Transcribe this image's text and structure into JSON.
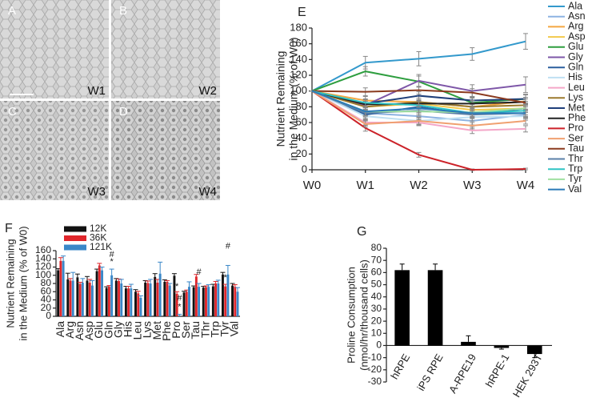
{
  "micrographs": {
    "panels": [
      {
        "letter": "A",
        "label": "W1"
      },
      {
        "letter": "B",
        "label": "W2"
      },
      {
        "letter": "C",
        "label": "W3"
      },
      {
        "letter": "D",
        "label": "W4"
      }
    ]
  },
  "chart_data": [
    {
      "type": "line",
      "panel": "E",
      "ylabel": [
        "Nutrient Remaining",
        "in the Medium (% of W0)"
      ],
      "categories": [
        "W0",
        "W1",
        "W2",
        "W3",
        "W4"
      ],
      "ylim": [
        0,
        180
      ],
      "yticks": [
        0,
        20,
        40,
        60,
        80,
        100,
        120,
        140,
        160,
        180
      ],
      "legend": "right",
      "series": [
        {
          "name": "Ala",
          "color": "#3399cc",
          "values": [
            100,
            136,
            141,
            147,
            163
          ],
          "errors": [
            0,
            8,
            9,
            8,
            10
          ]
        },
        {
          "name": "Asn",
          "color": "#8db3e2",
          "values": [
            100,
            72,
            68,
            62,
            70
          ],
          "errors": [
            0,
            5,
            5,
            5,
            5
          ]
        },
        {
          "name": "Arg",
          "color": "#f4a742",
          "values": [
            100,
            88,
            86,
            80,
            87
          ],
          "errors": [
            0,
            5,
            5,
            5,
            5
          ]
        },
        {
          "name": "Asp",
          "color": "#f2c94c",
          "values": [
            100,
            80,
            84,
            76,
            78
          ],
          "errors": [
            0,
            5,
            5,
            5,
            5
          ]
        },
        {
          "name": "Glu",
          "color": "#2e9e3f",
          "values": [
            100,
            125,
            112,
            85,
            90
          ],
          "errors": [
            0,
            6,
            7,
            6,
            6
          ]
        },
        {
          "name": "Gly",
          "color": "#7e57a8",
          "values": [
            100,
            82,
            113,
            100,
            108
          ],
          "errors": [
            0,
            5,
            8,
            8,
            10
          ]
        },
        {
          "name": "Gln",
          "color": "#2b5f9e",
          "values": [
            100,
            70,
            80,
            70,
            78
          ],
          "errors": [
            0,
            5,
            5,
            5,
            5
          ]
        },
        {
          "name": "His",
          "color": "#bfe0f2",
          "values": [
            100,
            68,
            62,
            67,
            68
          ],
          "errors": [
            0,
            5,
            5,
            5,
            5
          ]
        },
        {
          "name": "Leu",
          "color": "#f4a6c8",
          "values": [
            100,
            60,
            60,
            50,
            52
          ],
          "errors": [
            0,
            4,
            4,
            4,
            4
          ]
        },
        {
          "name": "Lys",
          "color": "#9c7a2e",
          "values": [
            100,
            80,
            86,
            80,
            82
          ],
          "errors": [
            0,
            5,
            5,
            5,
            5
          ]
        },
        {
          "name": "Met",
          "color": "#1f3f7a",
          "values": [
            100,
            84,
            94,
            88,
            90
          ],
          "errors": [
            0,
            5,
            5,
            5,
            5
          ]
        },
        {
          "name": "Phe",
          "color": "#222222",
          "values": [
            100,
            83,
            84,
            84,
            86
          ],
          "errors": [
            0,
            4,
            4,
            4,
            4
          ]
        },
        {
          "name": "Pro",
          "color": "#cc2229",
          "values": [
            100,
            53,
            19,
            0,
            1
          ],
          "errors": [
            0,
            4,
            3,
            1,
            1
          ]
        },
        {
          "name": "Ser",
          "color": "#f0a070",
          "values": [
            100,
            58,
            62,
            56,
            62
          ],
          "errors": [
            0,
            4,
            4,
            4,
            4
          ]
        },
        {
          "name": "Tau",
          "color": "#8b3a1e",
          "values": [
            100,
            99,
            101,
            98,
            85
          ],
          "errors": [
            0,
            5,
            5,
            5,
            5
          ]
        },
        {
          "name": "Thr",
          "color": "#5a7fa8",
          "values": [
            100,
            72,
            75,
            70,
            72
          ],
          "errors": [
            0,
            4,
            4,
            4,
            4
          ]
        },
        {
          "name": "Trp",
          "color": "#2ec4c4",
          "values": [
            100,
            85,
            82,
            72,
            75
          ],
          "errors": [
            0,
            5,
            5,
            5,
            5
          ]
        },
        {
          "name": "Tyr",
          "color": "#9fe0a0",
          "values": [
            100,
            74,
            74,
            73,
            78
          ],
          "errors": [
            0,
            5,
            5,
            5,
            5
          ]
        },
        {
          "name": "Val",
          "color": "#2a7ab8",
          "values": [
            100,
            74,
            78,
            72,
            72
          ],
          "errors": [
            0,
            5,
            5,
            5,
            5
          ]
        }
      ]
    },
    {
      "type": "bar",
      "panel": "F",
      "ylabel": [
        "Nutrient Remaining",
        "in the Medium (% of W0)"
      ],
      "categories": [
        "Ala",
        "Arg",
        "Asn",
        "Asp",
        "Glu",
        "Gln",
        "Gly",
        "His",
        "Leu",
        "Lys",
        "Met",
        "Phe",
        "Pro",
        "Ser",
        "Tau",
        "Thr",
        "Trp",
        "Tyr",
        "Val"
      ],
      "ylim": [
        0,
        160
      ],
      "yticks": [
        0,
        20,
        40,
        60,
        80,
        100,
        120,
        140,
        160
      ],
      "legend": "top-left",
      "series": [
        {
          "name": "12K",
          "color": "#111111",
          "values": [
            112,
            90,
            95,
            87,
            110,
            69,
            87,
            68,
            60,
            82,
            96,
            84,
            99,
            58,
            71,
            70,
            73,
            102,
            75
          ],
          "errors": [
            4,
            15,
            8,
            10,
            5,
            3,
            5,
            5,
            5,
            5,
            8,
            5,
            5,
            3,
            3,
            3,
            5,
            5,
            5
          ]
        },
        {
          "name": "36K",
          "color": "#e0262b",
          "values": [
            135,
            87,
            79,
            82,
            124,
            72,
            86,
            68,
            56,
            81,
            82,
            84,
            55,
            60,
            97,
            71,
            80,
            73,
            72
          ],
          "errors": [
            8,
            5,
            4,
            8,
            5,
            3,
            5,
            5,
            5,
            5,
            8,
            3,
            5,
            4,
            5,
            3,
            5,
            5,
            5
          ]
        },
        {
          "name": "121K",
          "color": "#3a87c8",
          "values": [
            135,
            87,
            82,
            75,
            112,
            100,
            80,
            68,
            45,
            80,
            104,
            75,
            2,
            72,
            72,
            72,
            80,
            102,
            60
          ],
          "errors": [
            12,
            20,
            10,
            12,
            8,
            15,
            10,
            10,
            5,
            10,
            28,
            5,
            3,
            12,
            8,
            5,
            8,
            22,
            10
          ]
        }
      ],
      "annotations": [
        "#",
        "*",
        "*",
        "#",
        "*",
        "#",
        "#",
        "*"
      ]
    },
    {
      "type": "bar",
      "panel": "G",
      "ylabel": [
        "Proline Consumption",
        "(nmol/hr/thousand cells)"
      ],
      "categories": [
        "hRPE",
        "iPS RPE",
        "A-RPE19",
        "hRPE-1",
        "HEK 293T"
      ],
      "ylim": [
        -30,
        80
      ],
      "yticks": [
        -30,
        -20,
        -10,
        0,
        10,
        20,
        30,
        40,
        50,
        60,
        70,
        80
      ],
      "color": "#000000",
      "values": [
        62,
        62,
        3,
        -2,
        -7
      ],
      "errors": [
        5,
        5,
        5,
        1,
        3
      ]
    }
  ]
}
